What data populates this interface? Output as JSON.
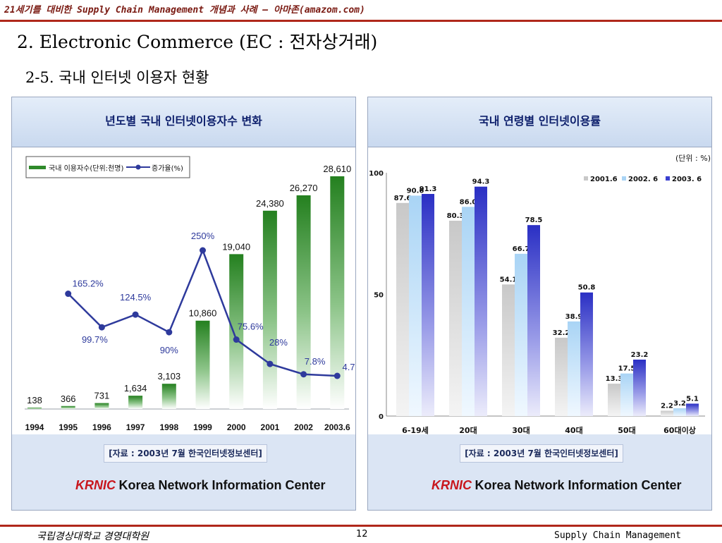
{
  "header": {
    "top_text": "21세기를 대비한 Supply Chain Management 개념과 사례 – 아마존(amazom.com)",
    "title": "2. Electronic Commerce (EC : 전자상거래)",
    "subtitle": "2-5. 국내 인터넷 이용자 현황"
  },
  "footer": {
    "left": "국립경상대학교 경영대학원",
    "page": "12",
    "right": "Supply Chain Management"
  },
  "colors": {
    "accent": "#b0281b",
    "panel_title": "#0c1e6b",
    "line": "#2e3a9c",
    "bar_green": "#2f8a2a"
  },
  "chart_data": [
    {
      "type": "bar",
      "title": "년도별 국내 인터넷이용자수 변화",
      "categories": [
        "1994",
        "1995",
        "1996",
        "1997",
        "1998",
        "1999",
        "2000",
        "2001",
        "2002",
        "2003.6"
      ],
      "series": [
        {
          "name": "국내 이용자수(단위:천명)",
          "type": "bar",
          "values": [
            138,
            366,
            731,
            1634,
            3103,
            10860,
            19040,
            24380,
            26270,
            28610
          ],
          "labels": [
            "138",
            "366",
            "731",
            "1,634",
            "3,103",
            "10,860",
            "19,040",
            "24,380",
            "26,270",
            "28,610"
          ]
        },
        {
          "name": "증가율(%)",
          "type": "line",
          "values": [
            165.2,
            99.7,
            124.5,
            90,
            250,
            75.6,
            28,
            7.8,
            4.7
          ],
          "x": [
            "1995",
            "1996",
            "1997",
            "1998",
            "1999",
            "2000",
            "2001",
            "2002",
            "2003.6"
          ],
          "labels": [
            "165.2%",
            "99.7%",
            "124.5%",
            "90%",
            "250%",
            "75.6%",
            "28%",
            "7.8%",
            "4.7%"
          ]
        }
      ],
      "source": "[자료 : 2003년 7월 한국인터넷정보센터]",
      "org_logo": "KRNIC",
      "org_name": "Korea Network Information Center"
    },
    {
      "type": "bar",
      "title": "국내 연령별 인터넷이용률",
      "unit": "(단위 : %)",
      "categories": [
        "6-19세",
        "20대",
        "30대",
        "40대",
        "50대",
        "60대이상"
      ],
      "yticks": [
        "0",
        "50",
        "100"
      ],
      "ylim": [
        0,
        100
      ],
      "series": [
        {
          "name": "2001.6",
          "values": [
            87.6,
            80.3,
            54.1,
            32.2,
            13.3,
            2.2
          ]
        },
        {
          "name": "2002. 6",
          "values": [
            90.6,
            86.0,
            66.7,
            38.9,
            17.5,
            3.2
          ]
        },
        {
          "name": "2003. 6",
          "values": [
            91.3,
            94.3,
            78.5,
            50.8,
            23.2,
            5.1
          ]
        }
      ],
      "source": "[자료 : 2003년 7월 한국인터넷정보센터]",
      "org_logo": "KRNIC",
      "org_name": "Korea Network Information Center"
    }
  ]
}
